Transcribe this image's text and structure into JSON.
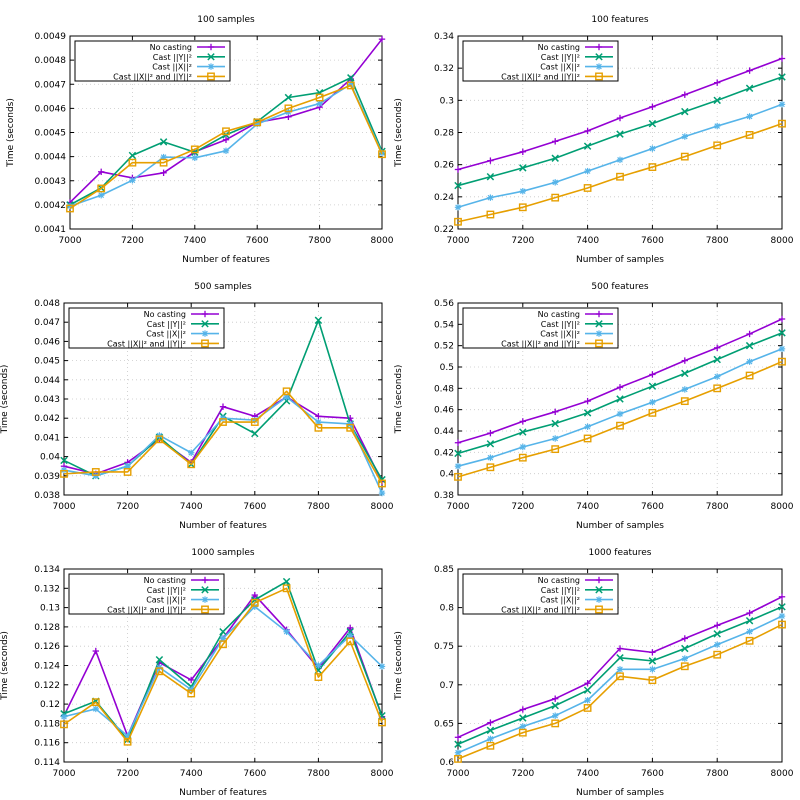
{
  "colors": {
    "No casting": "#9400d3",
    "Cast ||Y||²": "#009e73",
    "Cast ||X||²": "#56b4e9",
    "Cast ||X||² and ||Y||²": "#e69f00"
  },
  "chart_data": [
    {
      "type": "line",
      "title": "100 samples",
      "xlabel": "Number of features",
      "ylabel": "Time (seconds)",
      "x": [
        7000,
        7100,
        7200,
        7300,
        7400,
        7500,
        7600,
        7700,
        7800,
        7900,
        8000
      ],
      "xlim": [
        7000,
        8000
      ],
      "ylim": [
        0.0041,
        0.0049
      ],
      "xticks": [
        7000,
        7200,
        7400,
        7600,
        7800,
        8000
      ],
      "xtick_labels": [
        "7000",
        "7200",
        "7400",
        "7600",
        "7800",
        "8000"
      ],
      "yticks": [
        0.0041,
        0.0042,
        0.0043,
        0.0044,
        0.0045,
        0.0046,
        0.0047,
        0.0048,
        0.0049
      ],
      "ytick_labels": [
        "0.0041",
        "0.0042",
        "0.0043",
        "0.0044",
        "0.0045",
        "0.0046",
        "0.0047",
        "0.0048",
        "0.0049"
      ],
      "legend": "top-left",
      "series": [
        {
          "name": "No casting",
          "values": [
            0.00421,
            0.004337,
            0.004312,
            0.004333,
            0.00442,
            0.00447,
            0.004542,
            0.004565,
            0.004605,
            0.004722,
            0.004887
          ]
        },
        {
          "name": "Cast ||Y||²",
          "values": [
            0.0042,
            0.00427,
            0.004405,
            0.004461,
            0.004418,
            0.00449,
            0.004545,
            0.004645,
            0.004665,
            0.004727,
            0.004422
          ]
        },
        {
          "name": "Cast ||X||²",
          "values": [
            0.004195,
            0.00424,
            0.004302,
            0.004398,
            0.004395,
            0.004424,
            0.004535,
            0.004585,
            0.00462,
            0.0047,
            0.004415
          ]
        },
        {
          "name": "Cast ||X||² and ||Y||²",
          "values": [
            0.004185,
            0.004268,
            0.004375,
            0.004375,
            0.00443,
            0.004505,
            0.004542,
            0.0046,
            0.004645,
            0.004695,
            0.00441
          ]
        }
      ]
    },
    {
      "type": "line",
      "title": "100 features",
      "xlabel": "Number of samples",
      "ylabel": "Time (seconds)",
      "x": [
        7000,
        7100,
        7200,
        7300,
        7400,
        7500,
        7600,
        7700,
        7800,
        7900,
        8000
      ],
      "xlim": [
        7000,
        8000
      ],
      "ylim": [
        0.22,
        0.34
      ],
      "xticks": [
        7000,
        7200,
        7400,
        7600,
        7800,
        8000
      ],
      "xtick_labels": [
        "7000",
        "7200",
        "7400",
        "7600",
        "7800",
        "8000"
      ],
      "yticks": [
        0.22,
        0.24,
        0.26,
        0.28,
        0.3,
        0.32,
        0.34
      ],
      "ytick_labels": [
        "0.22",
        "0.24",
        "0.26",
        "0.28",
        "0.3",
        "0.32",
        "0.34"
      ],
      "legend": "top-left",
      "series": [
        {
          "name": "No casting",
          "values": [
            0.257,
            0.2625,
            0.268,
            0.2745,
            0.281,
            0.289,
            0.296,
            0.3035,
            0.311,
            0.3185,
            0.326
          ]
        },
        {
          "name": "Cast ||Y||²",
          "values": [
            0.247,
            0.2525,
            0.258,
            0.264,
            0.2715,
            0.279,
            0.2855,
            0.293,
            0.3,
            0.3075,
            0.3145
          ]
        },
        {
          "name": "Cast ||X||²",
          "values": [
            0.2335,
            0.2395,
            0.2435,
            0.249,
            0.256,
            0.263,
            0.27,
            0.2775,
            0.284,
            0.29,
            0.2975
          ]
        },
        {
          "name": "Cast ||X||² and ||Y||²",
          "values": [
            0.2245,
            0.229,
            0.2335,
            0.2395,
            0.2455,
            0.2525,
            0.2585,
            0.265,
            0.272,
            0.2785,
            0.2855
          ]
        }
      ]
    },
    {
      "type": "line",
      "title": "500 samples",
      "xlabel": "Number of features",
      "ylabel": "Time (seconds)",
      "x": [
        7000,
        7100,
        7200,
        7300,
        7400,
        7500,
        7600,
        7700,
        7800,
        7900,
        8000
      ],
      "xlim": [
        7000,
        8000
      ],
      "ylim": [
        0.038,
        0.048
      ],
      "xticks": [
        7000,
        7200,
        7400,
        7600,
        7800,
        8000
      ],
      "xtick_labels": [
        "7000",
        "7200",
        "7400",
        "7600",
        "7800",
        "8000"
      ],
      "yticks": [
        0.038,
        0.039,
        0.04,
        0.041,
        0.042,
        0.043,
        0.044,
        0.045,
        0.046,
        0.047,
        0.048
      ],
      "ytick_labels": [
        "0.038",
        "0.039",
        "0.04",
        "0.041",
        "0.042",
        "0.043",
        "0.044",
        "0.045",
        "0.046",
        "0.047",
        "0.048"
      ],
      "legend": "top-left",
      "series": [
        {
          "name": "No casting",
          "values": [
            0.0395,
            0.0391,
            0.0397,
            0.0409,
            0.0397,
            0.0426,
            0.0421,
            0.0431,
            0.0421,
            0.042,
            0.0387
          ]
        },
        {
          "name": "Cast ||Y||²",
          "values": [
            0.0398,
            0.039,
            0.0395,
            0.041,
            0.0396,
            0.0421,
            0.0412,
            0.0429,
            0.0471,
            0.0417,
            0.0388
          ]
        },
        {
          "name": "Cast ||X||²",
          "values": [
            0.0393,
            0.039,
            0.0395,
            0.0411,
            0.0402,
            0.042,
            0.0419,
            0.0431,
            0.0418,
            0.0417,
            0.0381
          ]
        },
        {
          "name": "Cast ||X||² and ||Y||²",
          "values": [
            0.0391,
            0.0392,
            0.0392,
            0.0409,
            0.0396,
            0.0418,
            0.0418,
            0.0434,
            0.0415,
            0.0415,
            0.0386
          ]
        }
      ]
    },
    {
      "type": "line",
      "title": "500 features",
      "xlabel": "Number of samples",
      "ylabel": "Time (seconds)",
      "x": [
        7000,
        7100,
        7200,
        7300,
        7400,
        7500,
        7600,
        7700,
        7800,
        7900,
        8000
      ],
      "xlim": [
        7000,
        8000
      ],
      "ylim": [
        0.38,
        0.56
      ],
      "xticks": [
        7000,
        7200,
        7400,
        7600,
        7800,
        8000
      ],
      "xtick_labels": [
        "7000",
        "7200",
        "7400",
        "7600",
        "7800",
        "8000"
      ],
      "yticks": [
        0.38,
        0.4,
        0.42,
        0.44,
        0.46,
        0.48,
        0.5,
        0.52,
        0.54,
        0.56
      ],
      "ytick_labels": [
        "0.38",
        "0.4",
        "0.42",
        "0.44",
        "0.46",
        "0.48",
        "0.5",
        "0.52",
        "0.54",
        "0.56"
      ],
      "legend": "top-left",
      "series": [
        {
          "name": "No casting",
          "values": [
            0.429,
            0.438,
            0.449,
            0.458,
            0.468,
            0.481,
            0.493,
            0.506,
            0.518,
            0.531,
            0.545
          ]
        },
        {
          "name": "Cast ||Y||²",
          "values": [
            0.419,
            0.428,
            0.439,
            0.447,
            0.457,
            0.47,
            0.482,
            0.494,
            0.507,
            0.52,
            0.532
          ]
        },
        {
          "name": "Cast ||X||²",
          "values": [
            0.407,
            0.415,
            0.425,
            0.433,
            0.444,
            0.456,
            0.467,
            0.479,
            0.491,
            0.505,
            0.517
          ]
        },
        {
          "name": "Cast ||X||² and ||Y||²",
          "values": [
            0.397,
            0.406,
            0.415,
            0.423,
            0.433,
            0.445,
            0.457,
            0.468,
            0.48,
            0.492,
            0.505
          ]
        }
      ]
    },
    {
      "type": "line",
      "title": "1000 samples",
      "xlabel": "Number of features",
      "ylabel": "Time (seconds)",
      "x": [
        7000,
        7100,
        7200,
        7300,
        7400,
        7500,
        7600,
        7700,
        7800,
        7900,
        8000
      ],
      "xlim": [
        7000,
        8000
      ],
      "ylim": [
        0.114,
        0.134
      ],
      "xticks": [
        7000,
        7200,
        7400,
        7600,
        7800,
        8000
      ],
      "xtick_labels": [
        "7000",
        "7200",
        "7400",
        "7600",
        "7800",
        "8000"
      ],
      "yticks": [
        0.114,
        0.116,
        0.118,
        0.12,
        0.122,
        0.124,
        0.126,
        0.128,
        0.13,
        0.132,
        0.134
      ],
      "ytick_labels": [
        "0.114",
        "0.116",
        "0.118",
        "0.12",
        "0.122",
        "0.124",
        "0.126",
        "0.128",
        "0.13",
        "0.132",
        "0.134"
      ],
      "legend": "top-left",
      "series": [
        {
          "name": "No casting",
          "values": [
            0.1188,
            0.1255,
            0.1167,
            0.1243,
            0.1225,
            0.1268,
            0.1313,
            0.1277,
            0.1237,
            0.1279,
            0.1187
          ]
        },
        {
          "name": "Cast ||Y||²",
          "values": [
            0.119,
            0.1203,
            0.1163,
            0.1246,
            0.1218,
            0.1275,
            0.1308,
            0.1327,
            0.1235,
            0.1275,
            0.1188
          ]
        },
        {
          "name": "Cast ||X||²",
          "values": [
            0.1187,
            0.1195,
            0.1167,
            0.1238,
            0.1215,
            0.1268,
            0.1301,
            0.1275,
            0.124,
            0.1271,
            0.1239
          ]
        },
        {
          "name": "Cast ||X||² and ||Y||²",
          "values": [
            0.1179,
            0.1202,
            0.1161,
            0.1234,
            0.1211,
            0.1262,
            0.1305,
            0.132,
            0.1228,
            0.1265,
            0.1181
          ]
        }
      ]
    },
    {
      "type": "line",
      "title": "1000 features",
      "xlabel": "Number of samples",
      "ylabel": "Time (seconds)",
      "x": [
        7000,
        7100,
        7200,
        7300,
        7400,
        7500,
        7600,
        7700,
        7800,
        7900,
        8000
      ],
      "xlim": [
        7000,
        8000
      ],
      "ylim": [
        0.6,
        0.85
      ],
      "xticks": [
        7000,
        7200,
        7400,
        7600,
        7800,
        8000
      ],
      "xtick_labels": [
        "7000",
        "7200",
        "7400",
        "7600",
        "7800",
        "8000"
      ],
      "yticks": [
        0.6,
        0.65,
        0.7,
        0.75,
        0.8,
        0.85
      ],
      "ytick_labels": [
        "0.6",
        "0.65",
        "0.7",
        "0.75",
        "0.8",
        "0.85"
      ],
      "legend": "top-left",
      "series": [
        {
          "name": "No casting",
          "values": [
            0.632,
            0.651,
            0.668,
            0.682,
            0.702,
            0.747,
            0.742,
            0.76,
            0.777,
            0.793,
            0.814
          ]
        },
        {
          "name": "Cast ||Y||²",
          "values": [
            0.623,
            0.641,
            0.657,
            0.673,
            0.693,
            0.735,
            0.731,
            0.747,
            0.766,
            0.783,
            0.801
          ]
        },
        {
          "name": "Cast ||X||²",
          "values": [
            0.612,
            0.63,
            0.646,
            0.66,
            0.68,
            0.72,
            0.72,
            0.734,
            0.752,
            0.769,
            0.789
          ]
        },
        {
          "name": "Cast ||X||² and ||Y||²",
          "values": [
            0.604,
            0.621,
            0.638,
            0.65,
            0.67,
            0.711,
            0.706,
            0.724,
            0.739,
            0.757,
            0.778
          ]
        }
      ]
    }
  ]
}
